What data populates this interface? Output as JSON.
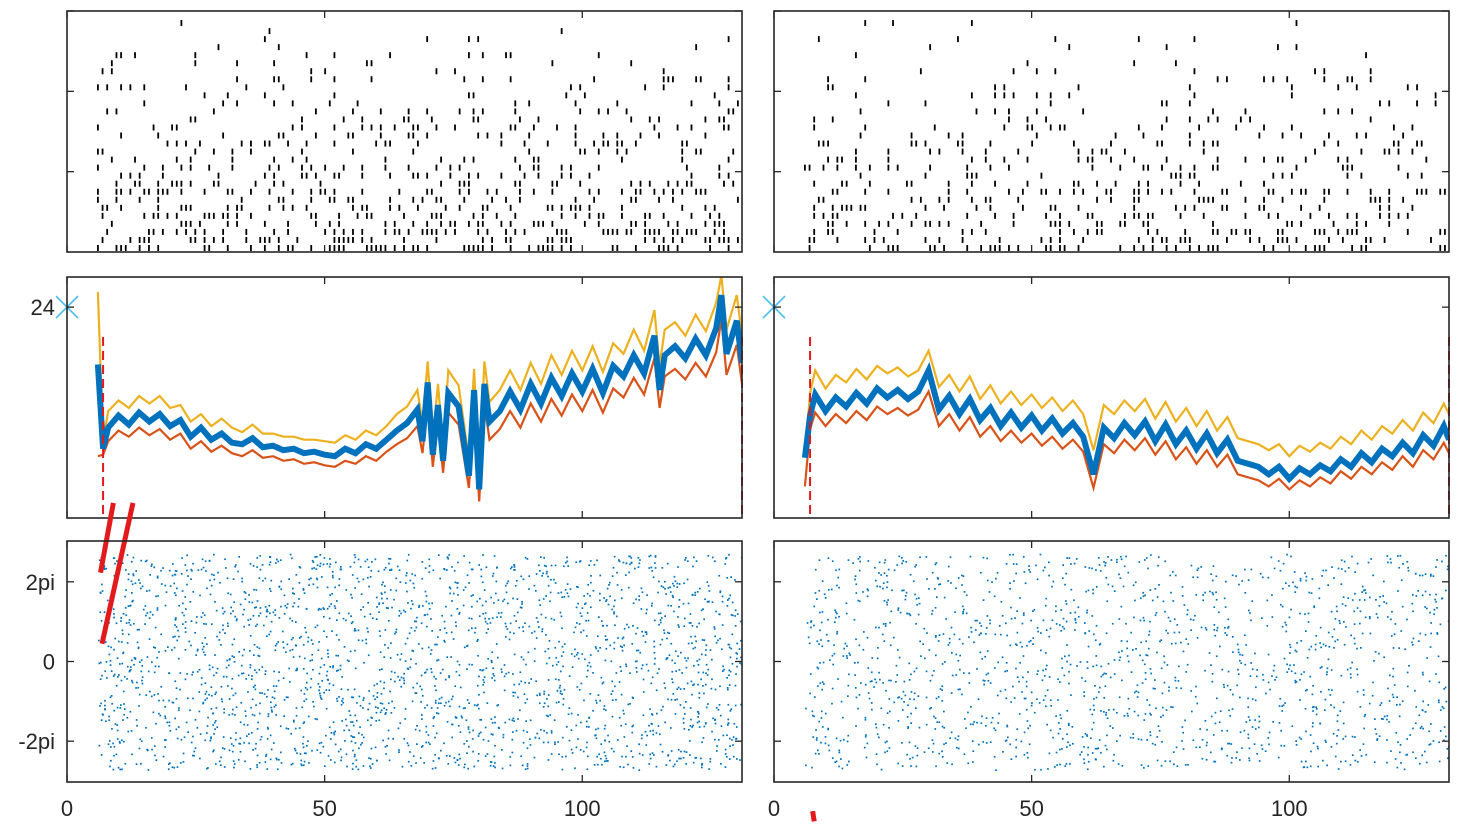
{
  "chart_data": {
    "type": "composite",
    "layout": "3 rows x 2 columns of panels sharing x axis",
    "xlim": [
      0,
      131
    ],
    "x_ticks": [
      {
        "value": 0,
        "label": "0"
      },
      {
        "value": 50,
        "label": "50"
      },
      {
        "value": 100,
        "label": "100"
      }
    ],
    "colors": {
      "raster": "#000000",
      "mid_line": "#0072BD",
      "upper_line": "#EDB120",
      "lower_line": "#D95319",
      "marker": "#4DBEEE",
      "threshold": "#E31A1C",
      "phase_dots": "#0072BD"
    },
    "rows": [
      {
        "id": "raster",
        "type": "raster",
        "ylim": [
          0,
          30
        ],
        "y_ticks": [
          10,
          20,
          30
        ],
        "y_tick_labels": [
          "",
          "",
          ""
        ],
        "events": {
          "left": {
            "x_start": 6,
            "x_end": 131,
            "max_row": 30,
            "density": 0.55
          },
          "right": {
            "x_start": 6,
            "x_end": 131,
            "max_row": 30,
            "density": 0.45
          }
        }
      },
      {
        "id": "rate",
        "type": "line",
        "ylim": [
          10,
          26
        ],
        "y_ticks": [
          {
            "value": 24,
            "label": "24"
          }
        ],
        "marker": {
          "x": 0,
          "y": 24,
          "symbol": "x"
        },
        "left": {
          "x": [
            6,
            7,
            8,
            10,
            12,
            14,
            16,
            18,
            20,
            22,
            24,
            26,
            28,
            30,
            32,
            34,
            36,
            38,
            40,
            42,
            44,
            46,
            48,
            50,
            52,
            54,
            56,
            58,
            60,
            62,
            64,
            66,
            68,
            69,
            70,
            71,
            72,
            73,
            74,
            76,
            78,
            79,
            80,
            81,
            82,
            84,
            86,
            88,
            90,
            92,
            94,
            96,
            98,
            100,
            102,
            104,
            106,
            108,
            110,
            112,
            114,
            115,
            116,
            118,
            120,
            122,
            124,
            126,
            127,
            128,
            130,
            131
          ],
          "mid": [
            20.2,
            14.6,
            16.0,
            16.8,
            16.2,
            17.0,
            16.4,
            16.9,
            16.1,
            16.5,
            15.4,
            16.0,
            15.2,
            15.6,
            15.0,
            14.9,
            15.3,
            14.7,
            14.8,
            14.5,
            14.6,
            14.3,
            14.4,
            14.2,
            14.1,
            14.6,
            14.3,
            14.9,
            14.6,
            15.2,
            15.8,
            16.3,
            17.2,
            15.1,
            19.0,
            14.2,
            17.5,
            13.8,
            18.3,
            17.4,
            12.8,
            18.5,
            11.9,
            18.9,
            16.4,
            17.1,
            18.4,
            17.2,
            18.9,
            17.6,
            19.3,
            18.1,
            19.6,
            18.4,
            19.9,
            18.3,
            20.1,
            19.4,
            20.8,
            19.6,
            22.1,
            18.5,
            20.8,
            21.4,
            20.6,
            21.9,
            20.8,
            22.6,
            24.8,
            20.9,
            23.1,
            20.3
          ],
          "upper": [
            25.0,
            15.1,
            17.1,
            17.8,
            17.3,
            18.1,
            17.6,
            18.1,
            17.3,
            17.5,
            16.4,
            16.9,
            16.1,
            16.6,
            16.0,
            15.7,
            16.2,
            15.6,
            15.6,
            15.4,
            15.4,
            15.2,
            15.2,
            15.1,
            15.0,
            15.5,
            15.2,
            15.8,
            15.5,
            16.1,
            16.9,
            17.4,
            18.5,
            16.3,
            20.4,
            15.3,
            18.9,
            14.8,
            19.8,
            18.8,
            13.9,
            19.9,
            12.9,
            20.4,
            17.7,
            18.5,
            19.8,
            18.5,
            20.3,
            18.9,
            20.8,
            19.5,
            21.1,
            19.8,
            21.4,
            19.7,
            21.6,
            20.9,
            22.5,
            21.1,
            23.8,
            20.1,
            22.5,
            23.0,
            22.1,
            23.5,
            22.4,
            24.3,
            26.1,
            22.5,
            24.8,
            22.1
          ],
          "lower": [
            14.1,
            14.2,
            15.1,
            15.8,
            15.4,
            16.0,
            15.5,
            15.9,
            15.2,
            15.6,
            14.6,
            15.1,
            14.4,
            14.8,
            14.3,
            14.1,
            14.5,
            14.0,
            14.1,
            13.8,
            13.9,
            13.6,
            13.7,
            13.5,
            13.4,
            13.8,
            13.6,
            14.1,
            13.8,
            14.4,
            14.9,
            15.3,
            16.1,
            14.3,
            17.7,
            13.4,
            16.4,
            13.0,
            17.0,
            16.2,
            12.0,
            17.2,
            11.1,
            17.6,
            15.2,
            15.9,
            17.1,
            16.0,
            17.6,
            16.4,
            17.9,
            16.8,
            18.2,
            17.1,
            18.5,
            17.0,
            18.6,
            18.0,
            19.3,
            18.2,
            20.6,
            17.3,
            19.4,
            19.9,
            19.2,
            20.3,
            19.4,
            21.0,
            23.2,
            19.5,
            21.5,
            18.9
          ]
        },
        "right": {
          "x": [
            6,
            7,
            8,
            10,
            12,
            14,
            16,
            18,
            20,
            22,
            24,
            26,
            28,
            30,
            32,
            34,
            36,
            38,
            40,
            42,
            44,
            46,
            48,
            50,
            52,
            54,
            56,
            58,
            60,
            62,
            64,
            66,
            68,
            70,
            72,
            74,
            76,
            78,
            80,
            82,
            84,
            86,
            88,
            90,
            92,
            94,
            96,
            98,
            100,
            102,
            104,
            106,
            108,
            110,
            112,
            114,
            116,
            118,
            120,
            122,
            124,
            126,
            128,
            130,
            131
          ],
          "mid": [
            14.0,
            16.8,
            18.2,
            17.1,
            18.0,
            17.4,
            18.3,
            17.6,
            18.6,
            18.0,
            18.5,
            17.9,
            18.4,
            19.8,
            17.2,
            18.1,
            16.9,
            17.9,
            16.5,
            17.3,
            16.1,
            17.0,
            16.0,
            16.8,
            15.8,
            16.6,
            15.6,
            16.3,
            15.4,
            12.9,
            16.0,
            15.3,
            16.3,
            15.5,
            16.4,
            15.1,
            16.2,
            14.9,
            15.8,
            14.6,
            15.6,
            14.3,
            15.2,
            13.8,
            13.6,
            13.4,
            12.9,
            13.4,
            12.6,
            13.3,
            12.9,
            13.5,
            13.1,
            13.9,
            13.4,
            14.3,
            13.7,
            14.6,
            14.1,
            15.0,
            14.3,
            15.5,
            14.8,
            16.1,
            15.2
          ],
          "upper": [
            14.2,
            18.3,
            19.8,
            18.6,
            19.5,
            19.0,
            19.9,
            19.2,
            20.1,
            19.6,
            20.0,
            19.4,
            19.8,
            21.1,
            18.7,
            19.5,
            18.4,
            19.4,
            17.9,
            18.8,
            17.6,
            18.4,
            17.5,
            18.2,
            17.3,
            18.0,
            17.1,
            17.8,
            16.9,
            14.5,
            17.5,
            16.9,
            17.8,
            17.1,
            17.9,
            16.6,
            17.7,
            16.4,
            17.3,
            16.1,
            17.1,
            15.8,
            16.7,
            15.3,
            15.1,
            14.9,
            14.5,
            14.9,
            14.1,
            14.8,
            14.4,
            15.0,
            14.6,
            15.4,
            14.9,
            15.8,
            15.2,
            16.1,
            15.6,
            16.5,
            15.8,
            17.0,
            16.3,
            17.6,
            16.9
          ],
          "lower": [
            12.1,
            15.9,
            17.0,
            16.1,
            16.9,
            16.3,
            17.1,
            16.5,
            17.4,
            16.9,
            17.3,
            16.8,
            17.2,
            18.4,
            16.1,
            16.9,
            15.8,
            16.7,
            15.4,
            16.1,
            15.1,
            15.8,
            15.0,
            15.6,
            14.8,
            15.4,
            14.6,
            15.2,
            14.4,
            12.0,
            14.9,
            14.3,
            15.2,
            14.5,
            15.3,
            14.2,
            15.1,
            13.9,
            14.7,
            13.6,
            14.5,
            13.4,
            14.2,
            12.9,
            12.7,
            12.5,
            12.1,
            12.6,
            11.9,
            12.5,
            12.1,
            12.7,
            12.3,
            13.1,
            12.6,
            13.4,
            12.9,
            13.7,
            13.2,
            14.1,
            13.4,
            14.5,
            13.9,
            15.0,
            14.3
          ]
        },
        "thresholds": {
          "left": [
            7,
            131
          ],
          "right": [
            7,
            131
          ]
        }
      },
      {
        "id": "phase",
        "type": "scatter",
        "ylim": [
          -9.5,
          9.5
        ],
        "y_ticks": [
          {
            "value": 6.283,
            "label": "2pi"
          },
          {
            "value": 0,
            "label": "0"
          },
          {
            "value": -6.283,
            "label": "-2pi"
          }
        ],
        "dots": {
          "left": {
            "x_start": 6,
            "x_end": 131,
            "y_range": [
              -8.5,
              8.5
            ],
            "count": 2400
          },
          "right": {
            "x_start": 6,
            "x_end": 131,
            "y_range": [
              -8.5,
              8.5
            ],
            "count": 1600
          }
        },
        "red_segments": {
          "left": [
            {
              "x1": 6.5,
              "y1": 7.0,
              "x2": 9.0,
              "y2": 12.5
            },
            {
              "x1": 6.8,
              "y1": 1.4,
              "x2": 12.8,
              "y2": 12.5
            }
          ],
          "right": [
            {
              "x1": 7.5,
              "y1": -11.8,
              "x2": 7.8,
              "y2": -12.6
            }
          ]
        }
      }
    ]
  }
}
